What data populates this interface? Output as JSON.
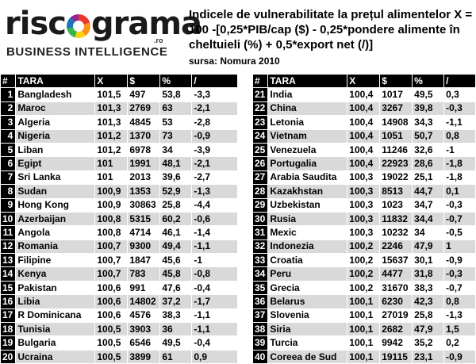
{
  "logo": {
    "word_start": "risc",
    "word_end": "grama",
    "suffix": ".ro",
    "tagline": "BUSINESS INTELLIGENCE"
  },
  "title": "Indicele de vulnerabilitate la prețul alimentelor X = 100 -[0,25*PIB/cap ($) - 0,25*pondere alimente în cheltuieli (%) + 0,5*export net (/)]",
  "source": "sursa: Nomura 2010",
  "headers": [
    "#",
    "TARA",
    "X",
    "$",
    "%",
    "/"
  ],
  "left_rows": [
    [
      "1",
      "Bangladesh",
      "101,5",
      "497",
      "53,8",
      "-3,3"
    ],
    [
      "2",
      "Maroc",
      "101,3",
      "2769",
      "63",
      "-2,1"
    ],
    [
      "3",
      "Algeria",
      "101,3",
      "4845",
      "53",
      "-2,8"
    ],
    [
      "4",
      "Nigeria",
      "101,2",
      "1370",
      "73",
      "-0,9"
    ],
    [
      "5",
      "Liban",
      "101,2",
      "6978",
      "34",
      "-3,9"
    ],
    [
      "6",
      "Egipt",
      "101",
      "1991",
      "48,1",
      "-2,1"
    ],
    [
      "7",
      "Sri Lanka",
      "101",
      "2013",
      "39,6",
      "-2,7"
    ],
    [
      "8",
      "Sudan",
      "100,9",
      "1353",
      "52,9",
      "-1,3"
    ],
    [
      "9",
      "Hong Kong",
      "100,9",
      "30863",
      "25,8",
      "-4,4"
    ],
    [
      "10",
      "Azerbaijan",
      "100,8",
      "5315",
      "60,2",
      "-0,6"
    ],
    [
      "11",
      "Angola",
      "100,8",
      "4714",
      "46,1",
      "-1,4"
    ],
    [
      "12",
      "Romania",
      "100,7",
      "9300",
      "49,4",
      "-1,1"
    ],
    [
      "13",
      "Filipine",
      "100,7",
      "1847",
      "45,6",
      "-1"
    ],
    [
      "14",
      "Kenya",
      "100,7",
      "783",
      "45,8",
      "-0,8"
    ],
    [
      "15",
      "Pakistan",
      "100,6",
      "991",
      "47,6",
      "-0,4"
    ],
    [
      "16",
      "Libia",
      "100,6",
      "14802",
      "37,2",
      "-1,7"
    ],
    [
      "17",
      "R Dominicana",
      "100,6",
      "4576",
      "38,3",
      "-1,1"
    ],
    [
      "18",
      "Tunisia",
      "100,5",
      "3903",
      "36",
      "-1,1"
    ],
    [
      "19",
      "Bulgaria",
      "100,5",
      "6546",
      "49,5",
      "-0,4"
    ],
    [
      "20",
      "Ucraina",
      "100,5",
      "3899",
      "61",
      "0,9"
    ]
  ],
  "right_rows": [
    [
      "21",
      "India",
      "100,4",
      "1017",
      "49,5",
      "0,3"
    ],
    [
      "22",
      "China",
      "100,4",
      "3267",
      "39,8",
      "-0,3"
    ],
    [
      "23",
      "Letonia",
      "100,4",
      "14908",
      "34,3",
      "-1,1"
    ],
    [
      "24",
      "Vietnam",
      "100,4",
      "1051",
      "50,7",
      "0,8"
    ],
    [
      "25",
      "Venezuela",
      "100,4",
      "11246",
      "32,6",
      "-1"
    ],
    [
      "26",
      "Portugalia",
      "100,4",
      "22923",
      "28,6",
      "-1,8"
    ],
    [
      "27",
      "Arabia Saudita",
      "100,3",
      "19022",
      "25,1",
      "-1,8"
    ],
    [
      "28",
      "Kazakhstan",
      "100,3",
      "8513",
      "44,7",
      "0,1"
    ],
    [
      "29",
      "Uzbekistan",
      "100,3",
      "1023",
      "34,7",
      "-0,3"
    ],
    [
      "30",
      "Rusia",
      "100,3",
      "11832",
      "34,4",
      "-0,7"
    ],
    [
      "31",
      "Mexic",
      "100,3",
      "10232",
      "34",
      "-0,5"
    ],
    [
      "32",
      "Indonezia",
      "100,2",
      "2246",
      "47,9",
      "1"
    ],
    [
      "33",
      "Croatia",
      "100,2",
      "15637",
      "30,1",
      "-0,9"
    ],
    [
      "34",
      "Peru",
      "100,2",
      "4477",
      "31,8",
      "-0,3"
    ],
    [
      "35",
      "Grecia",
      "100,2",
      "31670",
      "38,3",
      "-0,7"
    ],
    [
      "36",
      "Belarus",
      "100,1",
      "6230",
      "42,3",
      "0,8"
    ],
    [
      "37",
      "Slovenia",
      "100,1",
      "27019",
      "25,8",
      "-1,3"
    ],
    [
      "38",
      "Siria",
      "100,1",
      "2682",
      "47,9",
      "1,5"
    ],
    [
      "39",
      "Turcia",
      "100,1",
      "9942",
      "35,2",
      "0,2"
    ],
    [
      "40",
      "Coreea de Sud",
      "100,1",
      "19115",
      "23,1",
      "-0,9"
    ]
  ]
}
